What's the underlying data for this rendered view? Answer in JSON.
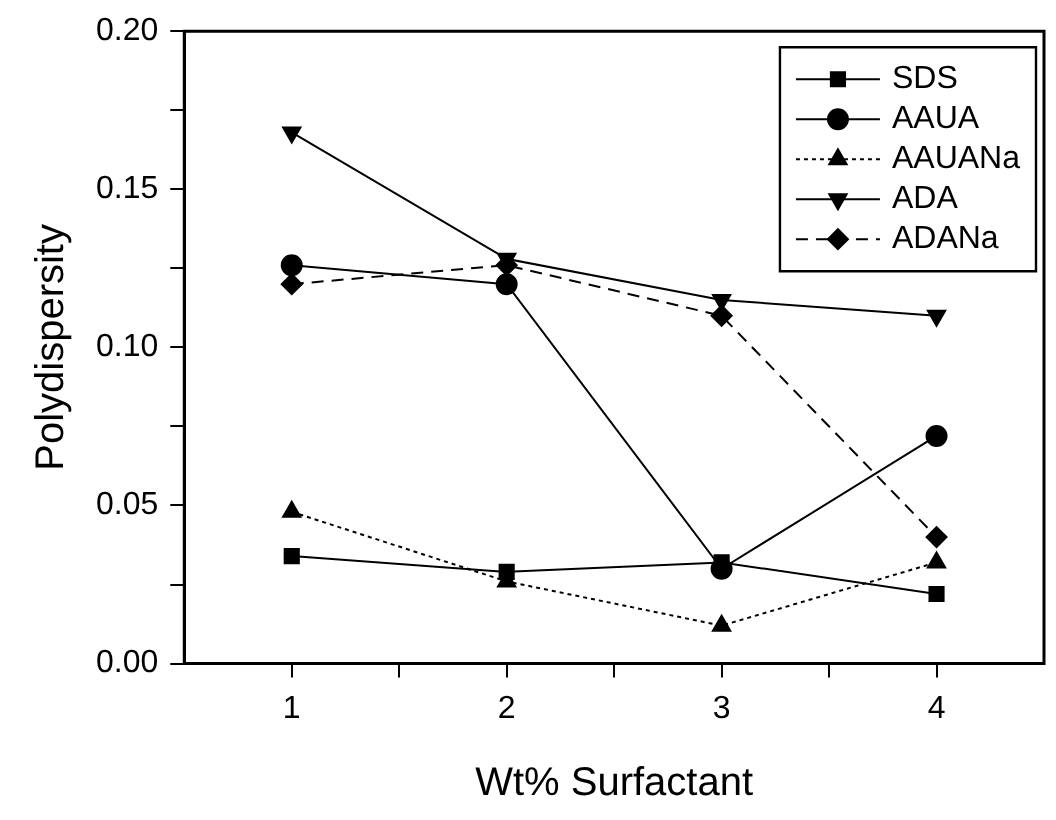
{
  "chart_data": {
    "type": "line",
    "xlabel": "Wt% Surfactant",
    "ylabel": "Polydispersity",
    "x": [
      1,
      2,
      3,
      4
    ],
    "xlim": [
      0.5,
      4.5
    ],
    "xticks": [
      1,
      {
        "value": 1.5,
        "label": null
      },
      2,
      {
        "value": 2.5,
        "label": null
      },
      3,
      {
        "value": 3.5,
        "label": null
      },
      4
    ],
    "ylim": [
      0,
      0.2
    ],
    "yticks": [
      {
        "value": 0,
        "label": "0.00"
      },
      {
        "value": 0.025,
        "label": null
      },
      {
        "value": 0.05,
        "label": "0.05"
      },
      {
        "value": 0.075,
        "label": null
      },
      {
        "value": 0.1,
        "label": "0.10"
      },
      {
        "value": 0.125,
        "label": null
      },
      {
        "value": 0.15,
        "label": "0.15"
      },
      {
        "value": 0.175,
        "label": null
      },
      {
        "value": 0.2,
        "label": "0.20"
      }
    ],
    "grid": false,
    "legend": "top right",
    "series": [
      {
        "name": "SDS",
        "color": "#000000",
        "marker": "square",
        "line_style": "solid",
        "values": [
          0.034,
          0.029,
          0.032,
          0.022
        ]
      },
      {
        "name": "AAUA",
        "color": "#000000",
        "marker": "circle",
        "line_style": "solid",
        "values": [
          0.126,
          0.12,
          0.03,
          0.072
        ]
      },
      {
        "name": "AAUANa",
        "color": "#000000",
        "marker": "triangle",
        "line_style": "dotted",
        "values": [
          0.048,
          0.026,
          0.012,
          0.032
        ]
      },
      {
        "name": "ADA",
        "color": "#000000",
        "marker": "triangle-down",
        "line_style": "solid",
        "values": [
          0.168,
          0.128,
          0.115,
          0.11
        ]
      },
      {
        "name": "ADANa",
        "color": "#000000",
        "marker": "diamond",
        "line_style": "dashed",
        "values": [
          0.12,
          0.126,
          0.11,
          0.04
        ]
      }
    ]
  }
}
